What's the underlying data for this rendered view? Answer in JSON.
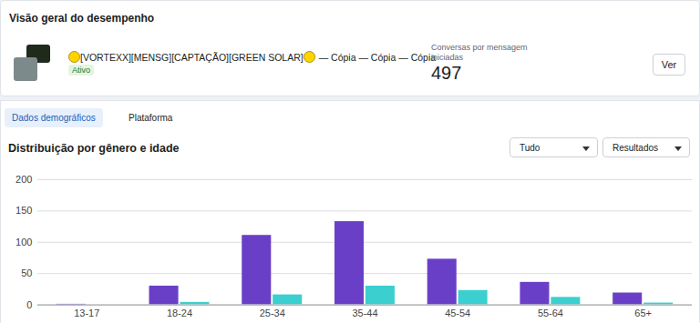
{
  "page": {
    "header_title": "Visão geral do desempenho",
    "campaign": {
      "name": "[VORTEXX][MENSG][CAPTAÇÃO][GREEN SOLAR]",
      "suffix": "— Cópia — Cópia — Cópia",
      "status": "Ativo"
    },
    "metric": {
      "label": "Conversas por mensagem iniciadas",
      "value": 497
    },
    "button": "Ver",
    "tabs": [
      "Dados demográficos",
      "Plataforma"
    ],
    "filters": [
      "Tudo",
      "Resultados"
    ]
  },
  "chart_data": {
    "type": "bar",
    "title": "Distribuição por gênero e idade",
    "categories": [
      "13-17",
      "18-24",
      "25-34",
      "35-44",
      "45-54",
      "55-64",
      "65+"
    ],
    "series": [
      {
        "color": "#6a3fc8",
        "values": [
          1,
          30,
          111,
          133,
          73,
          36,
          19
        ]
      },
      {
        "color": "#3ccfcf",
        "values": [
          0,
          4,
          16,
          30,
          23,
          12,
          3
        ]
      }
    ],
    "ylim": [
      0,
      200
    ],
    "yticks": [
      0,
      50,
      100,
      150,
      200
    ],
    "grid": true
  }
}
